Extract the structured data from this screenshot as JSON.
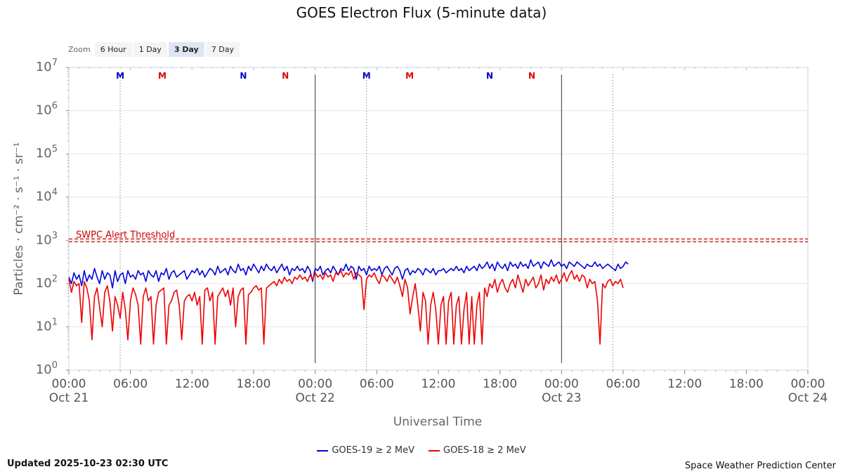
{
  "chart_data": {
    "type": "line",
    "title": "GOES Electron Flux (5-minute data)",
    "xlabel": "Universal Time",
    "ylabel": "Particles · cm⁻² · s⁻¹ · sr⁻¹",
    "y_scale": "log",
    "ylim": [
      1,
      10000000
    ],
    "y_ticks": [
      {
        "value": 1,
        "label": "10",
        "exp": "0"
      },
      {
        "value": 10,
        "label": "10",
        "exp": "1"
      },
      {
        "value": 100,
        "label": "10",
        "exp": "2"
      },
      {
        "value": 1000,
        "label": "10",
        "exp": "3"
      },
      {
        "value": 10000,
        "label": "10",
        "exp": "4"
      },
      {
        "value": 100000,
        "label": "10",
        "exp": "5"
      },
      {
        "value": 1000000,
        "label": "10",
        "exp": "6"
      },
      {
        "value": 10000000,
        "label": "10",
        "exp": "7"
      }
    ],
    "xlim_hours": [
      0,
      72
    ],
    "x_ticks": [
      {
        "h": 0,
        "time": "00:00",
        "date": "Oct 21"
      },
      {
        "h": 6,
        "time": "06:00",
        "date": ""
      },
      {
        "h": 12,
        "time": "12:00",
        "date": ""
      },
      {
        "h": 18,
        "time": "18:00",
        "date": ""
      },
      {
        "h": 24,
        "time": "00:00",
        "date": "Oct 22"
      },
      {
        "h": 30,
        "time": "06:00",
        "date": ""
      },
      {
        "h": 36,
        "time": "12:00",
        "date": ""
      },
      {
        "h": 42,
        "time": "18:00",
        "date": ""
      },
      {
        "h": 48,
        "time": "00:00",
        "date": "Oct 23"
      },
      {
        "h": 54,
        "time": "06:00",
        "date": ""
      },
      {
        "h": 60,
        "time": "12:00",
        "date": ""
      },
      {
        "h": 66,
        "time": "18:00",
        "date": ""
      },
      {
        "h": 72,
        "time": "00:00",
        "date": "Oct 24"
      }
    ],
    "threshold": {
      "value": 1000,
      "label": "SWPC Alert Threshold",
      "color": "#cc0000"
    },
    "day_lines_h": [
      24,
      48
    ],
    "dotted_lines_h": [
      5,
      29,
      53
    ],
    "markers": [
      {
        "h": 5,
        "letter": "M",
        "color": "#0000cc"
      },
      {
        "h": 9.1,
        "letter": "M",
        "color": "#dd0000"
      },
      {
        "h": 17,
        "letter": "N",
        "color": "#0000cc"
      },
      {
        "h": 21.1,
        "letter": "N",
        "color": "#dd0000"
      },
      {
        "h": 29,
        "letter": "M",
        "color": "#0000cc"
      },
      {
        "h": 33.2,
        "letter": "M",
        "color": "#dd0000"
      },
      {
        "h": 41,
        "letter": "N",
        "color": "#0000cc"
      },
      {
        "h": 45.1,
        "letter": "N",
        "color": "#dd0000"
      }
    ],
    "series": [
      {
        "name": "GOES-19 ≥ 2 MeV",
        "color": "#0000dd",
        "t_start_h": 0,
        "step_h": 0.25,
        "log10_values": [
          2.15,
          2.0,
          2.25,
          2.1,
          2.2,
          1.95,
          2.3,
          2.05,
          2.2,
          2.1,
          2.35,
          2.15,
          2.0,
          2.3,
          2.1,
          2.25,
          2.2,
          1.9,
          2.3,
          2.05,
          2.2,
          2.25,
          2.0,
          2.3,
          2.15,
          2.2,
          2.1,
          2.3,
          2.2,
          2.25,
          2.05,
          2.3,
          2.2,
          2.15,
          2.3,
          2.05,
          2.25,
          2.2,
          2.35,
          2.1,
          2.25,
          2.3,
          2.15,
          2.2,
          2.25,
          2.3,
          2.1,
          2.2,
          2.3,
          2.25,
          2.35,
          2.2,
          2.3,
          2.15,
          2.25,
          2.35,
          2.3,
          2.2,
          2.4,
          2.25,
          2.3,
          2.35,
          2.2,
          2.4,
          2.3,
          2.25,
          2.45,
          2.3,
          2.35,
          2.2,
          2.4,
          2.3,
          2.45,
          2.35,
          2.25,
          2.4,
          2.3,
          2.45,
          2.35,
          2.3,
          2.4,
          2.25,
          2.35,
          2.45,
          2.3,
          2.4,
          2.2,
          2.35,
          2.3,
          2.4,
          2.3,
          2.35,
          2.25,
          2.4,
          2.3,
          2.05,
          2.35,
          2.3,
          2.4,
          2.2,
          2.3,
          2.35,
          2.25,
          2.4,
          2.3,
          2.2,
          2.35,
          2.3,
          2.45,
          2.3,
          2.4,
          2.35,
          2.1,
          2.4,
          2.3,
          2.35,
          2.2,
          2.4,
          2.3,
          2.35,
          2.3,
          2.4,
          2.2,
          2.35,
          2.4,
          2.3,
          2.2,
          2.35,
          2.4,
          2.3,
          2.1,
          2.3,
          2.35,
          2.2,
          2.3,
          2.25,
          2.35,
          2.3,
          2.2,
          2.35,
          2.3,
          2.25,
          2.35,
          2.2,
          2.3,
          2.3,
          2.35,
          2.25,
          2.3,
          2.35,
          2.3,
          2.4,
          2.3,
          2.35,
          2.25,
          2.4,
          2.3,
          2.35,
          2.4,
          2.3,
          2.45,
          2.35,
          2.4,
          2.5,
          2.35,
          2.45,
          2.3,
          2.5,
          2.4,
          2.35,
          2.45,
          2.3,
          2.5,
          2.4,
          2.45,
          2.35,
          2.5,
          2.4,
          2.45,
          2.35,
          2.55,
          2.4,
          2.45,
          2.5,
          2.35,
          2.5,
          2.45,
          2.4,
          2.55,
          2.4,
          2.45,
          2.5,
          2.4,
          2.45,
          2.35,
          2.5,
          2.45,
          2.4,
          2.5,
          2.45,
          2.4,
          2.35,
          2.45,
          2.4,
          2.4,
          2.5,
          2.4,
          2.45,
          2.35,
          2.4,
          2.45,
          2.4,
          2.35,
          2.3,
          2.45,
          2.35,
          2.4,
          2.5,
          2.45
        ]
      },
      {
        "name": "GOES-18 ≥ 2 MeV",
        "color": "#ee0000",
        "t_start_h": 0,
        "step_h": 0.25,
        "log10_values": [
          2.1,
          1.8,
          2.05,
          1.95,
          2.0,
          1.1,
          2.05,
          1.9,
          1.6,
          0.7,
          1.7,
          1.9,
          1.45,
          1.0,
          1.8,
          1.95,
          1.6,
          0.9,
          1.7,
          1.5,
          1.2,
          1.8,
          1.4,
          0.7,
          1.6,
          1.9,
          1.75,
          1.5,
          0.6,
          1.7,
          1.9,
          1.6,
          1.7,
          0.6,
          1.5,
          1.8,
          1.85,
          1.9,
          0.6,
          1.5,
          1.6,
          1.8,
          1.85,
          1.5,
          0.7,
          1.6,
          1.7,
          1.75,
          1.6,
          1.8,
          1.5,
          1.7,
          0.6,
          1.85,
          1.9,
          1.6,
          1.8,
          0.6,
          1.7,
          1.8,
          1.9,
          1.7,
          1.85,
          1.5,
          1.9,
          1.0,
          1.7,
          1.85,
          1.9,
          0.6,
          1.75,
          1.8,
          1.9,
          1.95,
          1.85,
          1.9,
          0.6,
          1.9,
          1.95,
          2.0,
          2.05,
          1.95,
          2.1,
          2.0,
          2.15,
          2.05,
          2.1,
          2.0,
          2.15,
          2.1,
          2.2,
          2.1,
          2.15,
          2.05,
          2.2,
          2.1,
          2.25,
          2.15,
          2.2,
          2.1,
          2.25,
          2.15,
          2.2,
          2.05,
          2.25,
          2.2,
          2.3,
          2.15,
          2.25,
          2.2,
          2.3,
          2.1,
          2.25,
          2.2,
          2.15,
          1.4,
          2.1,
          2.2,
          2.15,
          2.25,
          2.1,
          2.0,
          2.2,
          2.15,
          2.05,
          2.2,
          2.1,
          2.0,
          2.15,
          1.95,
          1.7,
          2.1,
          1.9,
          1.3,
          1.7,
          2.0,
          1.5,
          0.9,
          1.8,
          1.6,
          0.6,
          1.5,
          1.8,
          1.4,
          0.6,
          1.5,
          1.7,
          0.6,
          1.6,
          1.8,
          0.6,
          1.5,
          1.7,
          0.6,
          1.4,
          1.8,
          0.6,
          1.7,
          0.6,
          1.5,
          1.8,
          0.6,
          1.9,
          1.7,
          2.0,
          1.9,
          2.1,
          1.8,
          2.0,
          2.1,
          1.9,
          1.8,
          2.0,
          2.1,
          1.9,
          2.2,
          2.0,
          1.8,
          2.1,
          1.95,
          2.05,
          2.15,
          1.9,
          2.0,
          2.2,
          1.85,
          2.1,
          2.0,
          2.15,
          2.05,
          2.2,
          2.0,
          2.1,
          2.25,
          2.05,
          2.2,
          2.3,
          2.1,
          2.2,
          2.05,
          2.2,
          2.15,
          1.9,
          2.1,
          2.0,
          2.05,
          1.6,
          0.6,
          2.0,
          1.9,
          2.05,
          2.1,
          1.95,
          2.05,
          2.0,
          2.1,
          1.9
        ]
      }
    ],
    "legend": {
      "position": "bottom-center"
    }
  },
  "zoom": {
    "label": "Zoom",
    "buttons": [
      {
        "label": "6 Hour",
        "active": false
      },
      {
        "label": "1 Day",
        "active": false
      },
      {
        "label": "3 Day",
        "active": true
      },
      {
        "label": "7 Day",
        "active": false
      }
    ]
  },
  "footer": {
    "updated": "Updated 2025-10-23 02:30 UTC",
    "credit": "Space Weather Prediction Center"
  }
}
